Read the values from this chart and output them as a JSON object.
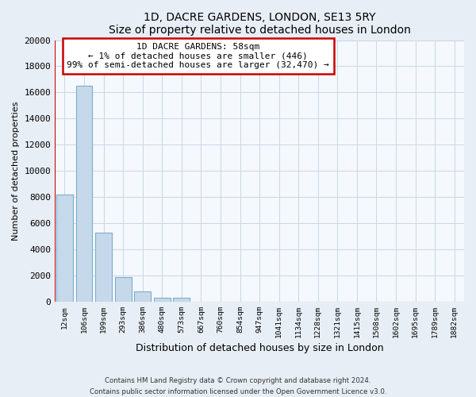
{
  "title": "1D, DACRE GARDENS, LONDON, SE13 5RY",
  "subtitle": "Size of property relative to detached houses in London",
  "xlabel": "Distribution of detached houses by size in London",
  "ylabel": "Number of detached properties",
  "bar_labels": [
    "12sqm",
    "106sqm",
    "199sqm",
    "293sqm",
    "386sqm",
    "480sqm",
    "573sqm",
    "667sqm",
    "760sqm",
    "854sqm",
    "947sqm",
    "1041sqm",
    "1134sqm",
    "1228sqm",
    "1321sqm",
    "1415sqm",
    "1508sqm",
    "1602sqm",
    "1695sqm",
    "1789sqm",
    "1882sqm"
  ],
  "bar_values": [
    8200,
    16500,
    5300,
    1850,
    800,
    300,
    270,
    0,
    0,
    0,
    0,
    0,
    0,
    0,
    0,
    0,
    0,
    0,
    0,
    0,
    0
  ],
  "bar_color": "#c6d9eb",
  "bar_edge_color": "#7aafc8",
  "ylim": [
    0,
    20000
  ],
  "yticks": [
    0,
    2000,
    4000,
    6000,
    8000,
    10000,
    12000,
    14000,
    16000,
    18000,
    20000
  ],
  "annotation_line1": "1D DACRE GARDENS: 58sqm",
  "annotation_line2": "← 1% of detached houses are smaller (446)",
  "annotation_line3": "99% of semi-detached houses are larger (32,470) →",
  "red_line_x": 0.5,
  "footer_line1": "Contains HM Land Registry data © Crown copyright and database right 2024.",
  "footer_line2": "Contains public sector information licensed under the Open Government Licence v3.0.",
  "bg_color": "#e8eef5",
  "plot_bg_color": "#f5f8fc",
  "grid_color": "#c8d8e8"
}
